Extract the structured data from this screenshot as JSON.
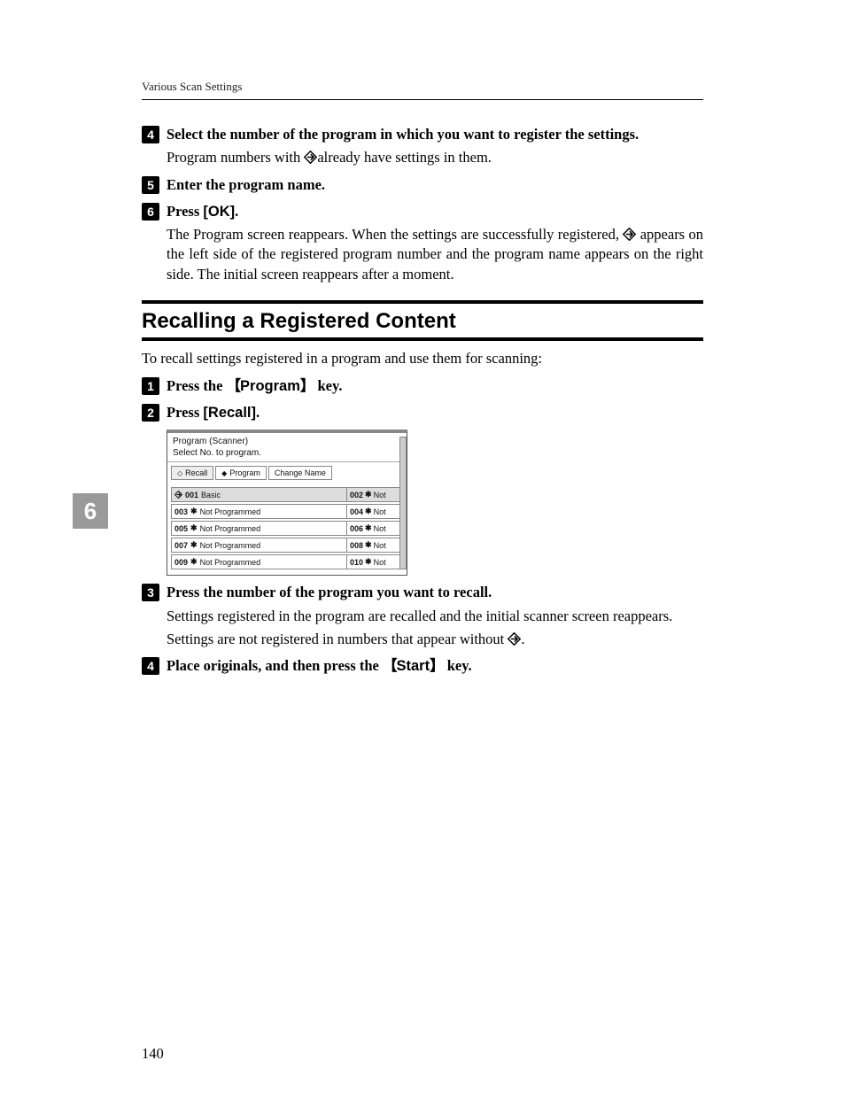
{
  "header": "Various Scan Settings",
  "side_tab": {
    "number": "6",
    "bg": "#9a9a9a"
  },
  "page_number": "140",
  "diamond_svg_color": "#000000",
  "steps_top": [
    {
      "num": "4",
      "title_parts": [
        "Select the number of the program in which you want to register the settings."
      ],
      "body": [
        {
          "type": "line_with_icon",
          "before": "Program numbers with ",
          "after": "already have settings in them."
        }
      ]
    },
    {
      "num": "5",
      "title_parts": [
        "Enter the program name."
      ],
      "body": []
    },
    {
      "num": "6",
      "title_parts": [
        "Press ",
        {
          "btn": "[OK]"
        },
        "."
      ],
      "body": [
        {
          "type": "para_with_icon",
          "before": "The Program screen reappears. When the settings are successfully registered, ",
          "after": " appears on the left side of the registered program number and the program name appears on the right side. The initial screen reappears after a moment."
        }
      ]
    }
  ],
  "section": {
    "title": "Recalling a Registered Content",
    "intro": "To recall settings registered in a program and use them for scanning:"
  },
  "steps_bottom": [
    {
      "num": "1",
      "title_parts": [
        "Press the ",
        {
          "keyopen": "{"
        },
        {
          "key": "Program"
        },
        {
          "keyclose": "}"
        },
        " key."
      ],
      "body": []
    },
    {
      "num": "2",
      "title_parts": [
        "Press ",
        {
          "btn": "[Recall]"
        },
        "."
      ],
      "body": [],
      "has_panel": true
    },
    {
      "num": "3",
      "title_parts": [
        "Press the number of the program you want to recall."
      ],
      "body": [
        {
          "type": "text",
          "text": "Settings registered in the program are recalled and the initial scanner screen reappears."
        },
        {
          "type": "line_with_icon_end",
          "before": "Settings are not registered in numbers that appear without ",
          "after": "."
        }
      ]
    },
    {
      "num": "4",
      "title_parts": [
        "Place originals, and then press the ",
        {
          "keyopen": "{"
        },
        {
          "key": "Start"
        },
        {
          "keyclose": "}"
        },
        " key."
      ],
      "body": []
    }
  ],
  "panel": {
    "title": "Program (Scanner)",
    "subtitle": "Select No. to program.",
    "tabs": [
      {
        "icon": "recall-icon",
        "label": "Recall",
        "active": true
      },
      {
        "icon": "program-icon",
        "label": "Program",
        "active": false
      },
      {
        "icon": "",
        "label": "Change Name",
        "active": false
      }
    ],
    "rows": [
      {
        "left_num": "001",
        "left_icon": true,
        "left_label": "Basic",
        "right_num": "002",
        "right_label": "Not",
        "highlight": true
      },
      {
        "left_num": "003",
        "left_icon": false,
        "left_label": "Not Programmed",
        "right_num": "004",
        "right_label": "Not"
      },
      {
        "left_num": "005",
        "left_icon": false,
        "left_label": "Not Programmed",
        "right_num": "006",
        "right_label": "Not"
      },
      {
        "left_num": "007",
        "left_icon": false,
        "left_label": "Not Programmed",
        "right_num": "008",
        "right_label": "Not"
      },
      {
        "left_num": "009",
        "left_icon": false,
        "left_label": "Not Programmed",
        "right_num": "010",
        "right_label": "Not"
      }
    ]
  }
}
